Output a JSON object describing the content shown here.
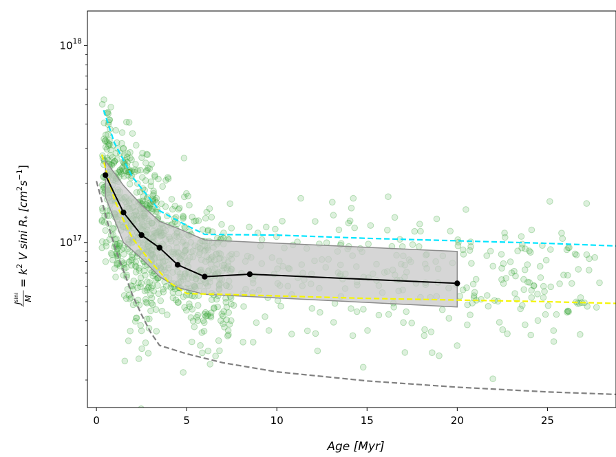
{
  "chart_data": {
    "type": "scatter",
    "xlabel": "Age  [Myr]",
    "ylabel_parts": [
      "J",
      "sini",
      "M",
      "= k",
      "2",
      " V sini R",
      "*",
      "  [cm",
      "2",
      "s",
      "−1",
      "]"
    ],
    "xlim": [
      -0.5,
      28.8
    ],
    "ylim": [
      1.45e+16,
      1.5e+18
    ],
    "yscale": "log",
    "x_ticks": [
      0,
      5,
      10,
      15,
      20,
      25
    ],
    "x_tick_labels": [
      "0",
      "5",
      "10",
      "15",
      "20",
      "25"
    ],
    "y_ticks": [
      1e+17,
      1e+18
    ],
    "y_tick_label_base": [
      "10",
      "10"
    ],
    "y_tick_label_exp": [
      "17",
      "18"
    ],
    "colors": {
      "scatter": "#2ca02c",
      "median": "#000000",
      "band": "#c8c8c8",
      "band_edge": "#8c8c8c",
      "cyan": "#00e5ff",
      "yellow": "#f5f500",
      "gray": "#808080"
    },
    "median_line": {
      "x": [
        0.5,
        1.5,
        2.5,
        3.5,
        4.5,
        6.0,
        8.5,
        20.0
      ],
      "y": [
        2.2e+17,
        1.42e+17,
        1.09e+17,
        9.4e+16,
        7.7e+16,
        6.7e+16,
        6.9e+16,
        6.2e+16
      ]
    },
    "band": {
      "x": [
        0.5,
        1.5,
        2.5,
        3.5,
        4.5,
        6.0,
        20.0
      ],
      "upper": [
        2.6e+17,
        1.95e+17,
        1.55e+17,
        1.28e+17,
        1.18e+17,
        1.03e+17,
        9e+16
      ],
      "lower": [
        1.7e+17,
        1e+17,
        8.3e+16,
        6.7e+16,
        5.9e+16,
        5.45e+16,
        4.7e+16
      ]
    },
    "cyan_line": {
      "x": [
        0.4,
        1.0,
        2.0,
        3.5,
        5.0,
        6.0,
        10,
        15,
        20,
        25,
        28.8
      ],
      "y": [
        4.7e+17,
        3.2e+17,
        2.15e+17,
        1.45e+17,
        1.22e+17,
        1.1e+17,
        1.09e+17,
        1.05e+17,
        1.02e+17,
        9.9e+16,
        9.6e+16
      ]
    },
    "yellow_line": {
      "x": [
        0.3,
        0.6,
        1.0,
        1.5,
        2.0,
        3.0,
        4.0,
        5.0,
        7.0,
        10,
        15,
        20,
        25,
        28.8
      ],
      "y": [
        2.8e+17,
        2.2e+17,
        1.65e+17,
        1.3e+17,
        1.05e+17,
        8e+16,
        6.3e+16,
        5.5e+16,
        5.45e+16,
        5.35e+16,
        5.2e+16,
        5.1e+16,
        5e+16,
        4.9e+16
      ]
    },
    "gray_line": {
      "x": [
        0.0,
        0.4,
        0.8,
        1.2,
        1.6,
        2.0,
        2.5,
        3.0,
        3.5,
        5,
        7,
        10,
        15,
        20,
        25,
        28.8
      ],
      "y": [
        2.05e+17,
        1.5e+17,
        1.1e+17,
        8.5e+16,
        6.8e+16,
        5.4e+16,
        4.3e+16,
        3.5e+16,
        3e+16,
        2.72e+16,
        2.45e+16,
        2.2e+16,
        1.98e+16,
        1.84e+16,
        1.74e+16,
        1.69e+16
      ]
    }
  }
}
